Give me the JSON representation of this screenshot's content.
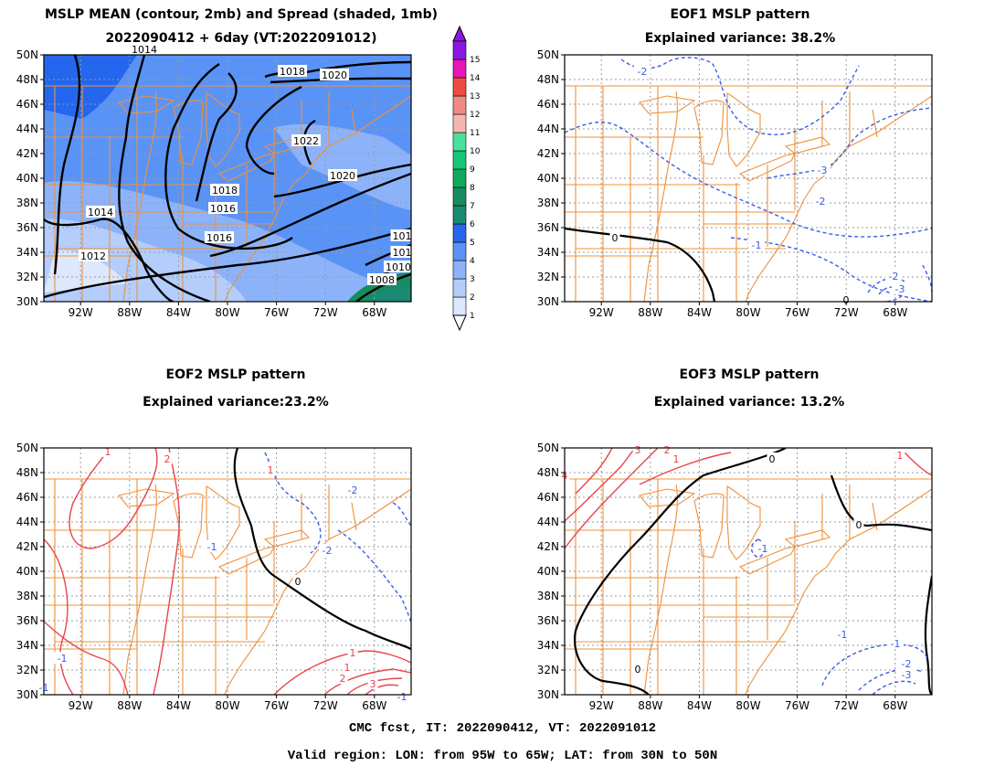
{
  "panels": [
    {
      "id": "mean",
      "title1": "MSLP MEAN (contour, 2mb) and Spread (shaded, 1mb)",
      "title2": "2022090412 + 6day (VT:2022091012)"
    },
    {
      "id": "eof1",
      "title1": "EOF1 MSLP pattern",
      "title2": "Explained variance: 38.2%"
    },
    {
      "id": "eof2",
      "title1": "EOF2 MSLP pattern",
      "title2": "Explained variance:23.2%"
    },
    {
      "id": "eof3",
      "title1": "EOF3 MSLP pattern",
      "title2": "Explained variance: 13.2%"
    }
  ],
  "axes": {
    "lat_labels": [
      "30N",
      "32N",
      "34N",
      "36N",
      "38N",
      "40N",
      "42N",
      "44N",
      "46N",
      "48N",
      "50N"
    ],
    "lon_labels": [
      "92W",
      "88W",
      "84W",
      "80W",
      "76W",
      "72W",
      "68W"
    ]
  },
  "colorbar": {
    "levels": [
      "1",
      "2",
      "3",
      "4",
      "5",
      "6",
      "7",
      "8",
      "9",
      "10",
      "11",
      "12",
      "13",
      "14",
      "15"
    ],
    "colors": [
      "#dde8fd",
      "#b4cdfb",
      "#8cb3fa",
      "#5a93f6",
      "#2467ee",
      "#1b8a73",
      "#178c5f",
      "#12a85c",
      "#14c878",
      "#49e19f",
      "#f6b6b0",
      "#f28a84",
      "#ee4b44",
      "#e816b4",
      "#8c17e0"
    ]
  },
  "mean_labels": [
    "1014",
    "1018",
    "1020",
    "1022",
    "1020",
    "1016",
    "1014",
    "1018",
    "1016",
    "1012",
    "101",
    "101",
    "1010",
    "1008"
  ],
  "eof_labels": {
    "eof1": [
      "-2",
      "-3",
      "-2",
      "-1",
      "0",
      "-2",
      "-3",
      "0"
    ],
    "eof2": [
      "-1",
      "-2",
      "1",
      "2",
      "-2",
      "-1",
      "0",
      "1",
      "-1",
      "1",
      "1",
      "2",
      "3",
      "-1"
    ],
    "eof3": [
      "0",
      "-1",
      "-1",
      "-2",
      "-3",
      "0",
      "0",
      "1",
      "2",
      "3",
      "4",
      "-1",
      "1"
    ]
  },
  "footer": {
    "line1": "CMC fcst, IT: 2022090412, VT: 2022091012",
    "line2": "Valid region: LON: from 95W to 65W; LAT: from 30N to 50N"
  }
}
